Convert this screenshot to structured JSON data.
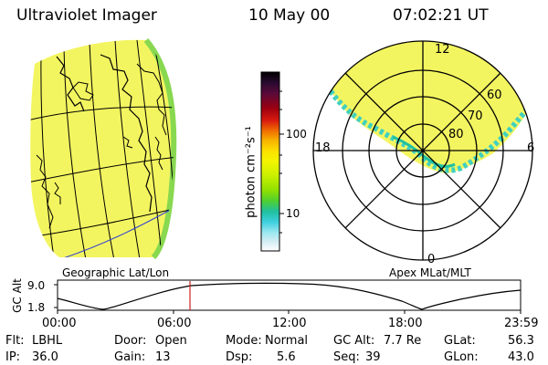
{
  "header": {
    "instrument": "Ultraviolet Imager",
    "date": "10 May 00",
    "time": "07:02:21 UT"
  },
  "colorbar": {
    "unit_label": "photon cm⁻²s⁻¹",
    "ticks": [
      "100",
      "10"
    ],
    "colors": [
      "#000000",
      "#2a0a30",
      "#5a0a3a",
      "#9a0010",
      "#d81a10",
      "#f07000",
      "#f7b000",
      "#fde000",
      "#f3f500",
      "#c8f000",
      "#90e000",
      "#50d030",
      "#20c0a0",
      "#40d0e0",
      "#a0e8f0",
      "#d6eef4",
      "#ffffff"
    ]
  },
  "geo_map": {
    "label": "Geographic Lat/Lon",
    "fill": "#f3f560",
    "limb": "#88d850"
  },
  "polar_plot": {
    "label": "Apex MLat/MLT",
    "mlt_labels": {
      "top": "12",
      "right": "6",
      "bottom": "0",
      "left": "18"
    },
    "mlat_labels": [
      "60",
      "70",
      "80"
    ]
  },
  "altitude_plot": {
    "ylabel": "GC Alt",
    "yticks": [
      "9.0",
      "1.8"
    ],
    "xticks": [
      "00:00",
      "06:00",
      "12:00",
      "18:00",
      "23:59"
    ],
    "marker_color": "#d02020",
    "marker_hour": 7.04
  },
  "status": {
    "filter_label": "Flt:",
    "filter_value": "LBHL",
    "door_label": "Door:",
    "door_value": "Open",
    "mode_label": "Mode:",
    "mode_value": "Normal",
    "gcalt_label": "GC Alt:",
    "gcalt_value": "7.7 Re",
    "glat_label": "GLat:",
    "glat_value": "56.3",
    "ip_label": "IP:",
    "ip_value": "36.0",
    "gain_label": "Gain:",
    "gain_value": "13",
    "dsp_label": "Dsp:",
    "dsp_value": "5.6",
    "seq_label": "Seq:",
    "seq_value": "39",
    "glon_label": "GLon:",
    "glon_value": "43.0"
  }
}
